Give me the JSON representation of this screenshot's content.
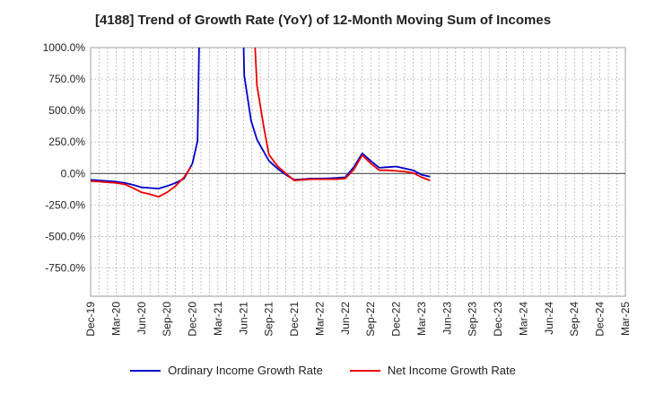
{
  "chart_data": {
    "type": "line",
    "title": "[4188]  Trend of Growth Rate (YoY) of 12-Month Moving Sum of Incomes",
    "xlabel": "",
    "ylabel": "",
    "ylim": [
      -975,
      1000
    ],
    "y_ticks": [
      1000,
      750,
      500,
      250,
      0,
      -250,
      -500,
      -750
    ],
    "y_tick_labels": [
      "1000.0%",
      "750.0%",
      "500.0%",
      "250.0%",
      "0.0%",
      "-250.0%",
      "-500.0%",
      "-750.0%"
    ],
    "x_tick_labels": [
      "Dec-19",
      "Mar-20",
      "Jun-20",
      "Sep-20",
      "Dec-20",
      "Mar-21",
      "Jun-21",
      "Sep-21",
      "Dec-21",
      "Mar-22",
      "Jun-22",
      "Sep-22",
      "Dec-22",
      "Mar-23",
      "Jun-23",
      "Sep-23",
      "Dec-23",
      "Mar-24",
      "Jun-24",
      "Sep-24",
      "Dec-24",
      "Mar-25"
    ],
    "grid": true,
    "legend_position": "bottom",
    "series": [
      {
        "name": "Ordinary Income Growth Rate",
        "color": "#0000cc",
        "points": [
          [
            0,
            -50
          ],
          [
            1,
            -55
          ],
          [
            2,
            -60
          ],
          [
            3,
            -65
          ],
          [
            4,
            -75
          ],
          [
            5,
            -90
          ],
          [
            6,
            -110
          ],
          [
            7,
            -115
          ],
          [
            8,
            -120
          ],
          [
            9,
            -100
          ],
          [
            10,
            -75
          ],
          [
            11,
            -40
          ],
          [
            12,
            80
          ],
          [
            12.6,
            260
          ],
          [
            12.8,
            1100
          ],
          [
            null,
            null
          ],
          [
            18.0,
            1100
          ],
          [
            18.1,
            780
          ],
          [
            18.9,
            420
          ],
          [
            19.6,
            270
          ],
          [
            21,
            100
          ],
          [
            22,
            40
          ],
          [
            23,
            -10
          ],
          [
            24,
            -50
          ],
          [
            25,
            -45
          ],
          [
            26,
            -40
          ],
          [
            27,
            -40
          ],
          [
            28,
            -38
          ],
          [
            29,
            -35
          ],
          [
            30,
            -30
          ],
          [
            31,
            50
          ],
          [
            32,
            160
          ],
          [
            33,
            100
          ],
          [
            34,
            45
          ],
          [
            35,
            50
          ],
          [
            36,
            55
          ],
          [
            37,
            40
          ],
          [
            38,
            25
          ],
          [
            39,
            -10
          ],
          [
            40,
            -25
          ]
        ]
      },
      {
        "name": "Net Income Growth Rate",
        "color": "#ee0000",
        "points": [
          [
            0,
            -60
          ],
          [
            1,
            -65
          ],
          [
            2,
            -70
          ],
          [
            3,
            -75
          ],
          [
            4,
            -85
          ],
          [
            5,
            -115
          ],
          [
            6,
            -150
          ],
          [
            7,
            -165
          ],
          [
            8,
            -185
          ],
          [
            9,
            -150
          ],
          [
            10,
            -100
          ],
          [
            11,
            -30
          ],
          [
            11.8,
            50
          ],
          [
            null,
            null
          ],
          [
            19.3,
            1100
          ],
          [
            19.6,
            700
          ],
          [
            20.4,
            370
          ],
          [
            21,
            150
          ],
          [
            22,
            60
          ],
          [
            23,
            0
          ],
          [
            24,
            -55
          ],
          [
            25,
            -50
          ],
          [
            26,
            -45
          ],
          [
            27,
            -45
          ],
          [
            28,
            -45
          ],
          [
            29,
            -45
          ],
          [
            30,
            -40
          ],
          [
            31,
            30
          ],
          [
            32,
            145
          ],
          [
            33,
            80
          ],
          [
            34,
            25
          ],
          [
            35,
            25
          ],
          [
            36,
            20
          ],
          [
            37,
            15
          ],
          [
            38,
            5
          ],
          [
            39,
            -30
          ],
          [
            40,
            -55
          ]
        ]
      }
    ]
  }
}
